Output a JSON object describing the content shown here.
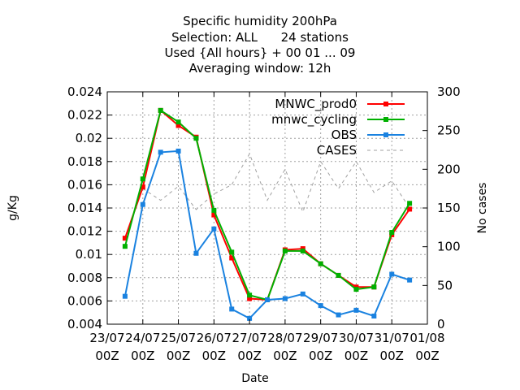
{
  "chart_data": {
    "type": "line",
    "title_lines": [
      "Specific humidity 200hPa",
      "Selection: ALL      24 stations",
      "Used {All hours} + 00 01 ... 09",
      "Averaging window: 12h"
    ],
    "xlabel": "Date",
    "ylabel": "g/Kg",
    "y2label": "No cases",
    "x_ticks": [
      [
        "23/07",
        "00Z"
      ],
      [
        "24/07",
        "00Z"
      ],
      [
        "25/07",
        "00Z"
      ],
      [
        "26/07",
        "00Z"
      ],
      [
        "27/07",
        "00Z"
      ],
      [
        "28/07",
        "00Z"
      ],
      [
        "29/07",
        "00Z"
      ],
      [
        "30/07",
        "00Z"
      ],
      [
        "31/07",
        "00Z"
      ],
      [
        "01/08",
        "00Z"
      ]
    ],
    "x_range_days": [
      0,
      9
    ],
    "ylim": [
      0.004,
      0.024
    ],
    "y_ticks": [
      "0.004",
      "0.006",
      "0.008",
      "0.01",
      "0.012",
      "0.014",
      "0.016",
      "0.018",
      "0.02",
      "0.022",
      "0.024"
    ],
    "y2lim": [
      0,
      300
    ],
    "y2_ticks": [
      "0",
      "50",
      "100",
      "150",
      "200",
      "250",
      "300"
    ],
    "grid": true,
    "legend_position": "top-right",
    "x_days": [
      0.5,
      1.0,
      1.5,
      2.0,
      2.5,
      3.0,
      3.5,
      4.0,
      4.5,
      5.0,
      5.5,
      6.0,
      6.5,
      7.0,
      7.5,
      8.0,
      8.5,
      9.0
    ],
    "series": [
      {
        "name": "MNWC_prod0",
        "axis": "y1",
        "color": "#ff0000",
        "values": [
          0.0114,
          0.0158,
          0.0224,
          0.0211,
          0.0201,
          0.0134,
          0.0097,
          0.0062,
          0.0061,
          0.0104,
          0.0105,
          0.0092,
          0.0082,
          0.0072,
          0.0072,
          0.0117,
          0.0139,
          null
        ]
      },
      {
        "name": "mnwc_cycling",
        "axis": "y1",
        "color": "#00b000",
        "values": [
          0.0107,
          0.0165,
          0.0224,
          0.0214,
          0.02,
          0.0138,
          0.0102,
          0.0065,
          0.0061,
          0.0103,
          0.0103,
          0.0092,
          0.0082,
          0.007,
          0.0072,
          0.0119,
          0.0144,
          null
        ]
      },
      {
        "name": "OBS",
        "axis": "y1",
        "color": "#1a82e0",
        "values": [
          0.0064,
          0.0143,
          0.0188,
          0.0189,
          0.0101,
          0.0122,
          0.0053,
          0.0045,
          0.0061,
          0.0062,
          0.0066,
          0.0056,
          0.0048,
          0.0052,
          0.0047,
          0.0083,
          0.0078,
          null
        ]
      },
      {
        "name": "CASES",
        "axis": "y2",
        "color": "#a0a0a0",
        "dashed": true,
        "values": [
          null,
          175,
          160,
          178,
          148,
          168,
          180,
          220,
          160,
          200,
          145,
          210,
          175,
          210,
          170,
          185,
          150,
          null
        ]
      }
    ]
  }
}
